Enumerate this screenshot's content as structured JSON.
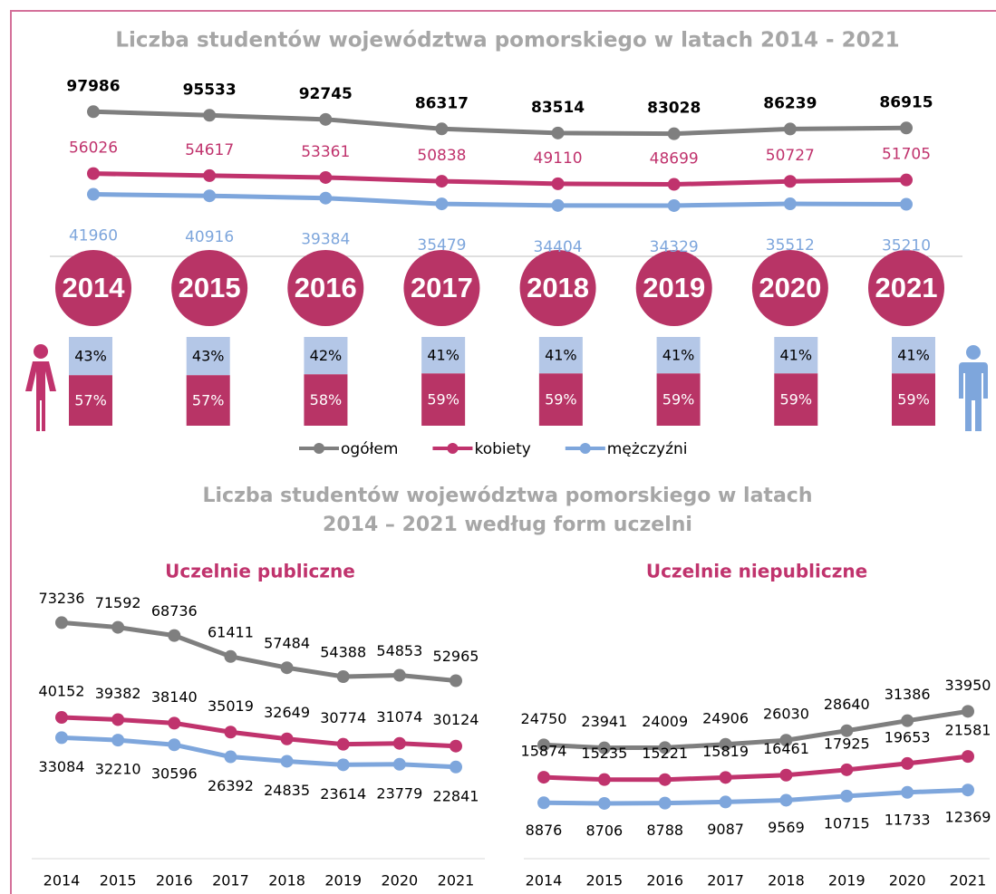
{
  "chart_data": [
    {
      "type": "line",
      "title": "Liczba studentów województwa pomorskiego w latach 2014 - 2021",
      "categories": [
        "2014",
        "2015",
        "2016",
        "2017",
        "2018",
        "2019",
        "2020",
        "2021"
      ],
      "ylim": [
        30000,
        100000
      ],
      "legend": "bottom",
      "series": [
        {
          "name": "ogółem",
          "color": "#7f7f7f",
          "values": [
            97986,
            95533,
            92745,
            86317,
            83514,
            83028,
            86239,
            86915
          ]
        },
        {
          "name": "kobiety",
          "color": "#c0336d",
          "values": [
            56026,
            54617,
            53361,
            50838,
            49110,
            48699,
            50727,
            51705
          ]
        },
        {
          "name": "mężczyźni",
          "color": "#7ea6dc",
          "values": [
            41960,
            40916,
            39384,
            35479,
            34404,
            34329,
            35512,
            35210
          ]
        }
      ]
    },
    {
      "type": "stacked-bar",
      "ylim": [
        0,
        100
      ],
      "series": [
        {
          "color": "#b83466",
          "values": [
            57,
            57,
            58,
            59,
            59,
            59,
            59,
            59
          ],
          "value_labels": [
            "57%",
            "57%",
            "58%",
            "59%",
            "59%",
            "59%",
            "59%",
            "59%"
          ]
        },
        {
          "color": "#b4c7e7",
          "values": [
            43,
            43,
            42,
            41,
            41,
            41,
            41,
            41
          ],
          "value_labels": [
            "43%",
            "43%",
            "42%",
            "41%",
            "41%",
            "41%",
            "41%",
            "41%"
          ]
        }
      ]
    },
    {
      "type": "line",
      "title": "Uczelnie publiczne",
      "categories": [
        "2014",
        "2015",
        "2016",
        "2017",
        "2018",
        "2019",
        "2020",
        "2021"
      ],
      "ylim": [
        0,
        80000
      ],
      "series": [
        {
          "color": "#7f7f7f",
          "values": [
            73236,
            71592,
            68736,
            61411,
            57484,
            54388,
            54853,
            52965
          ]
        },
        {
          "color": "#c0336d",
          "values": [
            40152,
            39382,
            38140,
            35019,
            32649,
            30774,
            31074,
            30124
          ]
        },
        {
          "color": "#7ea6dc",
          "values": [
            33084,
            32210,
            30596,
            26392,
            24835,
            23614,
            23779,
            22841
          ]
        }
      ]
    },
    {
      "type": "line",
      "title": "Uczelnie niepubliczne",
      "categories": [
        "2014",
        "2015",
        "2016",
        "2017",
        "2018",
        "2019",
        "2020",
        "2021"
      ],
      "ylim": [
        0,
        40000
      ],
      "series": [
        {
          "color": "#7f7f7f",
          "values": [
            24750,
            23941,
            24009,
            24906,
            26030,
            28640,
            31386,
            33950
          ]
        },
        {
          "color": "#c0336d",
          "values": [
            15874,
            15235,
            15221,
            15819,
            16461,
            17925,
            19653,
            21581
          ]
        },
        {
          "color": "#7ea6dc",
          "values": [
            8876,
            8706,
            8788,
            9087,
            9569,
            10715,
            11733,
            12369
          ]
        }
      ]
    }
  ],
  "section_title": [
    "Liczba studentów województwa pomorskiego w latach",
    "2014 – 2021 według form uczelni"
  ]
}
